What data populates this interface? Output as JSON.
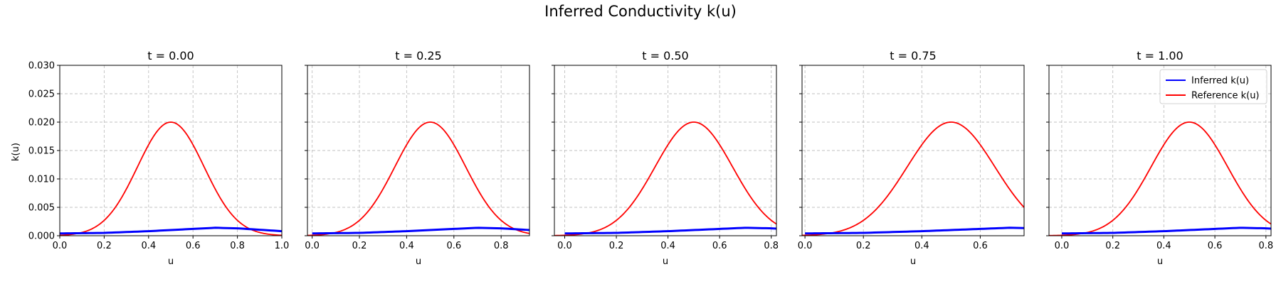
{
  "chart_data": {
    "title": "Inferred Conductivity k(u)",
    "type": "line",
    "ylabel": "k(u)",
    "xlabel": "u",
    "ylim": [
      0,
      0.03
    ],
    "yticks": [
      "0.000",
      "0.005",
      "0.010",
      "0.015",
      "0.020",
      "0.025",
      "0.030"
    ],
    "grid": true,
    "legend": {
      "placement": "top-right",
      "panel": 4,
      "entries": [
        {
          "label": "Inferred k(u)",
          "color": "#0000ff"
        },
        {
          "label": "Reference k(u)",
          "color": "#ff0000"
        }
      ]
    },
    "reference_curve": {
      "name": "Reference k(u)",
      "form": "gaussian",
      "peak": 0.02,
      "center": 0.5,
      "sigma": 0.15,
      "color": "#ff0000"
    },
    "inferred_curve": {
      "name": "Inferred k(u)",
      "color": "#0000ff",
      "points": [
        {
          "u": 0.0,
          "k": 0.0004
        },
        {
          "u": 0.2,
          "k": 0.0005
        },
        {
          "u": 0.4,
          "k": 0.0008
        },
        {
          "u": 0.6,
          "k": 0.0012
        },
        {
          "u": 0.7,
          "k": 0.0014
        },
        {
          "u": 0.8,
          "k": 0.0013
        },
        {
          "u": 1.0,
          "k": 0.0008
        }
      ]
    },
    "panels": [
      {
        "title": "t = 0.00",
        "xlim": [
          0.0,
          1.0
        ],
        "xticks": [
          "0.0",
          "0.2",
          "0.4",
          "0.6",
          "0.8",
          "1.0"
        ],
        "inferred_xmax": 1.0
      },
      {
        "title": "t = 0.25",
        "xlim": [
          -0.02,
          0.92
        ],
        "xticks": [
          "0.0",
          "0.2",
          "0.4",
          "0.6",
          "0.8"
        ],
        "inferred_xmax": 0.92
      },
      {
        "title": "t = 0.50",
        "xlim": [
          -0.04,
          0.82
        ],
        "xticks": [
          "0.0",
          "0.2",
          "0.4",
          "0.6",
          "0.8"
        ],
        "inferred_xmax": 0.82
      },
      {
        "title": "t = 0.75",
        "xlim": [
          -0.01,
          0.75
        ],
        "xticks": [
          "0.0",
          "0.2",
          "0.4",
          "0.6"
        ],
        "inferred_xmax": 0.75
      },
      {
        "title": "t = 1.00",
        "xlim": [
          -0.05,
          0.82
        ],
        "xticks": [
          "0.0",
          "0.2",
          "0.4",
          "0.6",
          "0.8"
        ],
        "inferred_xmax": 0.82
      }
    ]
  }
}
